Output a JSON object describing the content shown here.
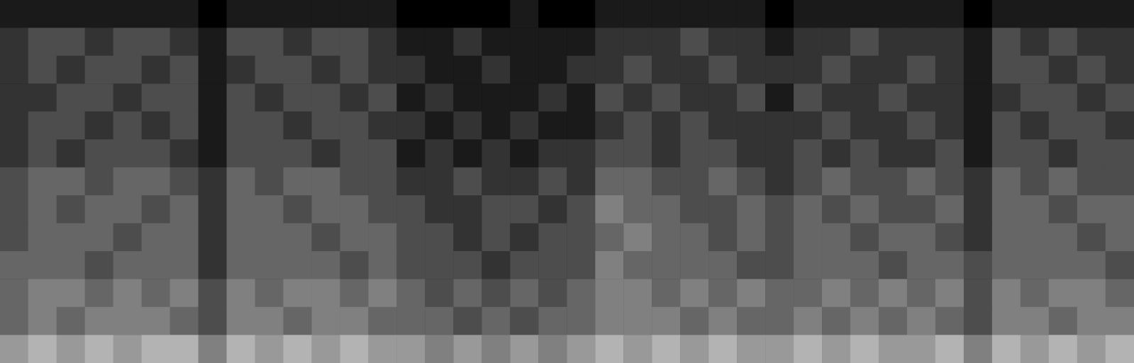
{
  "chart_data": {
    "type": "heatmap",
    "tick_labels": false,
    "grid": false,
    "zlim": [
      0,
      10
    ],
    "cells": [
      [
        1,
        1,
        1,
        1,
        1,
        1,
        1,
        0,
        1,
        1,
        1,
        1,
        1,
        1,
        0,
        0,
        0,
        0,
        1,
        0,
        0,
        1,
        1,
        1,
        1,
        1,
        1,
        0,
        1,
        1,
        1,
        1,
        1,
        1,
        0,
        1,
        1,
        1,
        1,
        1
      ],
      [
        2,
        3,
        3,
        2,
        3,
        3,
        2,
        1,
        3,
        3,
        2,
        3,
        3,
        2,
        1,
        1,
        2,
        1,
        1,
        1,
        1,
        2,
        2,
        2,
        3,
        2,
        2,
        1,
        2,
        2,
        3,
        2,
        2,
        2,
        1,
        3,
        2,
        3,
        2,
        2
      ],
      [
        2,
        3,
        2,
        3,
        3,
        2,
        3,
        1,
        2,
        3,
        3,
        2,
        3,
        2,
        2,
        1,
        1,
        2,
        1,
        1,
        2,
        2,
        3,
        2,
        2,
        3,
        2,
        2,
        2,
        3,
        2,
        2,
        3,
        2,
        1,
        3,
        3,
        2,
        3,
        2
      ],
      [
        2,
        2,
        3,
        3,
        2,
        3,
        3,
        1,
        3,
        2,
        3,
        3,
        2,
        3,
        1,
        2,
        1,
        1,
        1,
        2,
        1,
        3,
        2,
        3,
        2,
        2,
        3,
        1,
        3,
        2,
        2,
        3,
        2,
        2,
        1,
        2,
        3,
        3,
        2,
        3
      ],
      [
        2,
        3,
        3,
        2,
        3,
        2,
        3,
        1,
        3,
        3,
        2,
        3,
        3,
        2,
        2,
        1,
        2,
        1,
        2,
        1,
        1,
        2,
        3,
        2,
        3,
        2,
        2,
        2,
        2,
        3,
        2,
        2,
        3,
        2,
        1,
        3,
        2,
        3,
        3,
        2
      ],
      [
        2,
        3,
        2,
        3,
        3,
        3,
        2,
        1,
        3,
        3,
        3,
        2,
        3,
        3,
        1,
        2,
        1,
        2,
        1,
        2,
        2,
        3,
        3,
        2,
        3,
        3,
        2,
        2,
        3,
        2,
        3,
        2,
        2,
        3,
        1,
        3,
        3,
        2,
        3,
        3
      ],
      [
        3,
        4,
        4,
        3,
        4,
        4,
        3,
        2,
        4,
        3,
        4,
        4,
        3,
        3,
        2,
        2,
        3,
        2,
        2,
        3,
        2,
        4,
        4,
        3,
        3,
        4,
        3,
        2,
        3,
        4,
        3,
        3,
        4,
        3,
        2,
        4,
        3,
        4,
        3,
        3
      ],
      [
        3,
        4,
        3,
        4,
        4,
        3,
        4,
        2,
        4,
        4,
        3,
        4,
        4,
        3,
        3,
        2,
        2,
        3,
        3,
        2,
        3,
        5,
        4,
        4,
        3,
        3,
        4,
        3,
        4,
        3,
        4,
        3,
        3,
        4,
        2,
        4,
        4,
        3,
        4,
        4
      ],
      [
        3,
        4,
        4,
        4,
        3,
        4,
        4,
        2,
        4,
        4,
        4,
        3,
        4,
        4,
        3,
        3,
        2,
        3,
        2,
        3,
        3,
        4,
        5,
        4,
        4,
        3,
        4,
        3,
        4,
        4,
        3,
        4,
        4,
        3,
        2,
        4,
        4,
        4,
        3,
        4
      ],
      [
        4,
        4,
        4,
        3,
        4,
        4,
        4,
        2,
        4,
        4,
        4,
        4,
        3,
        4,
        3,
        3,
        3,
        2,
        3,
        3,
        3,
        5,
        4,
        4,
        4,
        4,
        3,
        3,
        4,
        4,
        4,
        3,
        4,
        4,
        3,
        4,
        4,
        4,
        4,
        3
      ],
      [
        4,
        5,
        5,
        4,
        5,
        4,
        5,
        3,
        5,
        4,
        5,
        5,
        4,
        5,
        4,
        3,
        4,
        3,
        4,
        3,
        4,
        5,
        5,
        4,
        5,
        4,
        5,
        4,
        4,
        5,
        4,
        5,
        4,
        5,
        3,
        5,
        4,
        5,
        5,
        4
      ],
      [
        4,
        5,
        4,
        5,
        5,
        5,
        4,
        3,
        5,
        5,
        4,
        5,
        5,
        4,
        4,
        4,
        3,
        4,
        3,
        4,
        4,
        5,
        5,
        5,
        4,
        5,
        4,
        4,
        5,
        4,
        5,
        4,
        5,
        4,
        3,
        5,
        5,
        4,
        5,
        5
      ],
      [
        6,
        7,
        6,
        7,
        6,
        7,
        7,
        5,
        7,
        6,
        7,
        6,
        7,
        6,
        6,
        5,
        6,
        5,
        6,
        5,
        6,
        7,
        6,
        7,
        6,
        7,
        6,
        6,
        7,
        6,
        7,
        6,
        6,
        7,
        5,
        7,
        6,
        7,
        6,
        7
      ]
    ]
  }
}
